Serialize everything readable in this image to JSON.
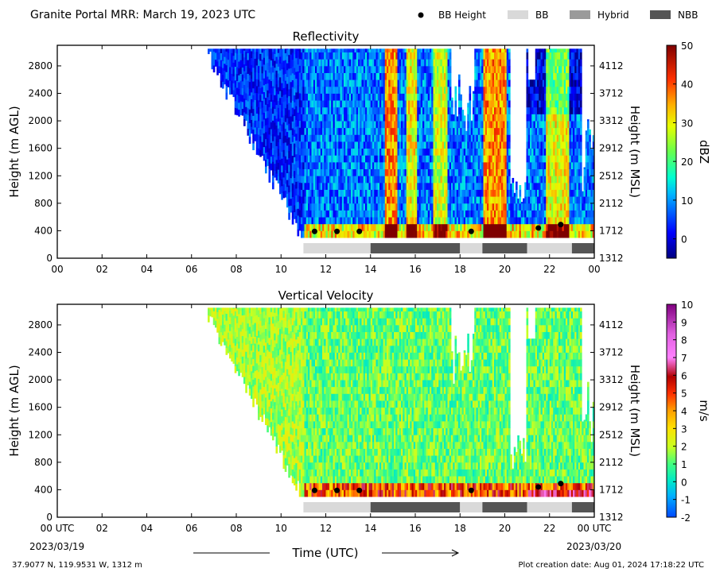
{
  "header": {
    "title": "Granite Portal MRR:  March 19, 2023 UTC",
    "legend": [
      {
        "label": "BB Height",
        "kind": "dot",
        "color": "#000000"
      },
      {
        "label": "BB",
        "kind": "rect",
        "color": "#d9d9d9"
      },
      {
        "label": "Hybrid",
        "kind": "rect",
        "color": "#9a9a9a"
      },
      {
        "label": "NBB",
        "kind": "rect",
        "color": "#555555"
      }
    ]
  },
  "colors": {
    "bb": "#d9d9d9",
    "nbb": "#555555"
  },
  "chart_data": [
    {
      "type": "heatmap",
      "title": "Reflectivity",
      "ylabel": "Height (m AGL)",
      "y2label": "Height (m MSL)",
      "ylim": [
        0,
        3100
      ],
      "yticks": [
        0,
        400,
        800,
        1200,
        1600,
        2000,
        2400,
        2800
      ],
      "y2ticks": [
        "1312",
        "1712",
        "2112",
        "2512",
        "2912",
        "3312",
        "3712",
        "4112"
      ],
      "xlim": [
        0,
        24
      ],
      "xticks": [
        "00",
        "02",
        "04",
        "06",
        "08",
        "10",
        "12",
        "14",
        "16",
        "18",
        "20",
        "22",
        "00"
      ],
      "colorbar": {
        "label": "dBZ",
        "min": -5,
        "max": 50,
        "ticks": [
          0,
          10,
          20,
          30,
          40,
          50
        ]
      },
      "bb_height_points": [
        {
          "x": 11.5,
          "y": 390
        },
        {
          "x": 12.5,
          "y": 390
        },
        {
          "x": 13.5,
          "y": 390
        },
        {
          "x": 18.5,
          "y": 390
        },
        {
          "x": 21.5,
          "y": 440
        },
        {
          "x": 22.5,
          "y": 490
        }
      ],
      "bb_class_segments": [
        {
          "start": 11,
          "end": 14,
          "class": "BB"
        },
        {
          "start": 14,
          "end": 18,
          "class": "NBB"
        },
        {
          "start": 18,
          "end": 19,
          "class": "BB"
        },
        {
          "start": 19,
          "end": 21,
          "class": "NBB"
        },
        {
          "start": 21,
          "end": 23,
          "class": "BB"
        },
        {
          "start": 23,
          "end": 24,
          "class": "NBB"
        }
      ]
    },
    {
      "type": "heatmap",
      "title": "Vertical Velocity",
      "ylabel": "Height (m AGL)",
      "y2label": "Height (m MSL)",
      "ylim": [
        0,
        3100
      ],
      "yticks": [
        0,
        400,
        800,
        1200,
        1600,
        2000,
        2400,
        2800
      ],
      "y2ticks": [
        "1312",
        "1712",
        "2112",
        "2512",
        "2912",
        "3312",
        "3712",
        "4112"
      ],
      "xlim": [
        0,
        24
      ],
      "xticks": [
        "00 UTC",
        "02",
        "04",
        "06",
        "08",
        "10",
        "12",
        "14",
        "16",
        "18",
        "20",
        "22",
        "00 UTC"
      ],
      "xlabel": "Time (UTC)",
      "colorbar": {
        "label": "m/s",
        "min": -2,
        "max": 10,
        "ticks": [
          -2,
          -1,
          0,
          1,
          2,
          3,
          4,
          5,
          6,
          7,
          8,
          9,
          10
        ]
      },
      "bb_height_points": [
        {
          "x": 11.5,
          "y": 390
        },
        {
          "x": 12.5,
          "y": 390
        },
        {
          "x": 13.5,
          "y": 390
        },
        {
          "x": 18.5,
          "y": 390
        },
        {
          "x": 21.5,
          "y": 440
        },
        {
          "x": 22.5,
          "y": 490
        }
      ],
      "bb_class_segments": [
        {
          "start": 11,
          "end": 14,
          "class": "BB"
        },
        {
          "start": 14,
          "end": 18,
          "class": "NBB"
        },
        {
          "start": 18,
          "end": 19,
          "class": "BB"
        },
        {
          "start": 19,
          "end": 21,
          "class": "NBB"
        },
        {
          "start": 21,
          "end": 23,
          "class": "BB"
        },
        {
          "start": 23,
          "end": 24,
          "class": "NBB"
        }
      ]
    }
  ],
  "footer": {
    "date_start": "2023/03/19",
    "date_end": "2023/03/20",
    "location": "37.9077 N, 119.9531 W, 1312 m",
    "creation": "Plot creation date: Aug 01, 2024 17:18:22 UTC"
  }
}
